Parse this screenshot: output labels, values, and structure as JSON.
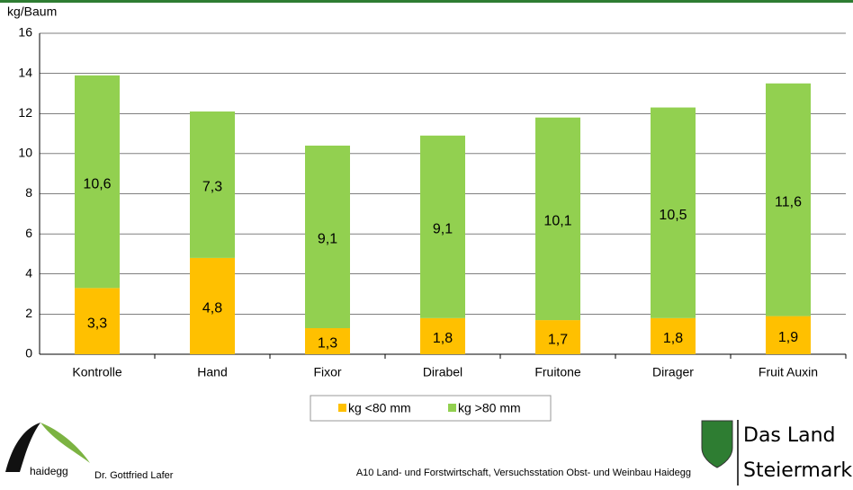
{
  "chart_data": {
    "type": "stacked_bar",
    "ylabel": "kg/Baum",
    "categories": [
      "Kontrolle",
      "Hand",
      "Fixor",
      "Dirabel",
      "Fruitone",
      "Dirager",
      "Fruit Auxin"
    ],
    "series": [
      {
        "name": "kg <80 mm",
        "color": "#ffc000",
        "values": [
          3.3,
          4.8,
          1.3,
          1.8,
          1.7,
          1.8,
          1.9
        ],
        "value_labels": [
          "3,3",
          "4,8",
          "1,3",
          "1,8",
          "1,7",
          "1,8",
          "1,9"
        ]
      },
      {
        "name": "kg >80 mm",
        "color": "#92d050",
        "values": [
          10.6,
          7.3,
          9.1,
          9.1,
          10.1,
          10.5,
          11.6
        ],
        "value_labels": [
          "10,6",
          "7,3",
          "9,1",
          "9,1",
          "10,1",
          "10,5",
          "11,6"
        ]
      }
    ],
    "ylim": [
      0,
      16
    ],
    "yticks": [
      0,
      2,
      4,
      6,
      8,
      10,
      12,
      14,
      16
    ],
    "grid": true
  },
  "footer": {
    "logo": "haidegg",
    "author": "Dr. Gottfried Lafer",
    "institution": "A10 Land- und Forstwirtschaft, Versuchsstation Obst- und Weinbau Haidegg",
    "brand_line1": "Das Land",
    "brand_line2": "Steiermark"
  }
}
